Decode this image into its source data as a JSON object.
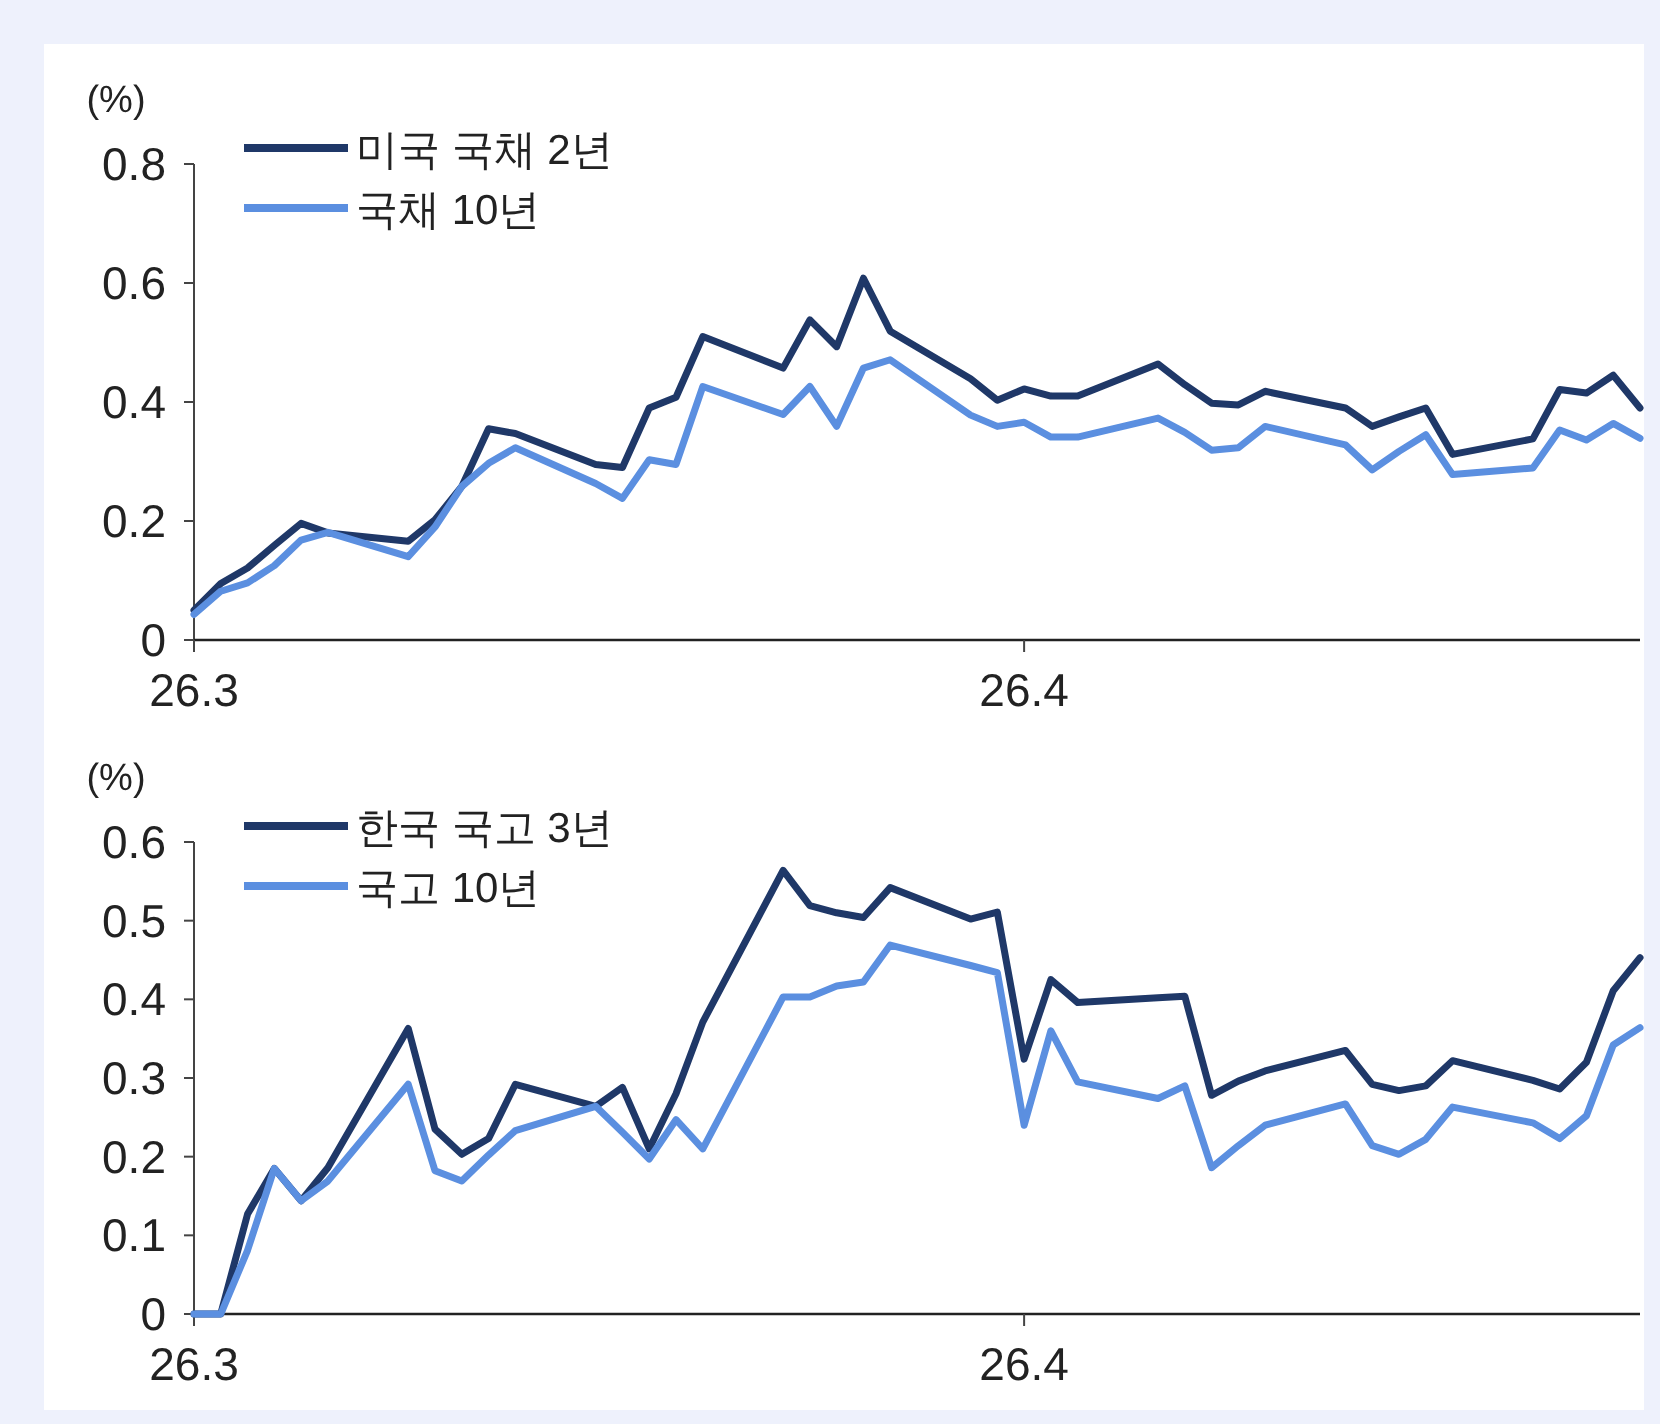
{
  "chart_data": [
    {
      "type": "line",
      "ylabel": "(%)",
      "legend": "top left",
      "ylim": [
        0,
        0.8
      ],
      "yticks": [
        0,
        0.2,
        0.4,
        0.6,
        0.8
      ],
      "xlim": [
        "--03-01",
        "--04-24"
      ],
      "xticks": [
        {
          "value": "--03-01",
          "label": "26.3"
        },
        {
          "value": "--04-01",
          "label": "26.4"
        }
      ],
      "x": [
        "--03-01",
        "--03-02",
        "--03-03",
        "--03-04",
        "--03-05",
        "--03-06",
        "--03-09",
        "--03-10",
        "--03-11",
        "--03-12",
        "--03-13",
        "--03-16",
        "--03-17",
        "--03-18",
        "--03-19",
        "--03-20",
        "--03-23",
        "--03-24",
        "--03-25",
        "--03-26",
        "--03-27",
        "--03-30",
        "--03-31",
        "--04-01",
        "--04-02",
        "--04-03",
        "--04-06",
        "--04-07",
        "--04-08",
        "--04-09",
        "--04-10",
        "--04-13",
        "--04-14",
        "--04-15",
        "--04-16",
        "--04-17",
        "--04-20",
        "--04-21",
        "--04-22",
        "--04-23",
        "--04-24"
      ],
      "series": [
        {
          "name": "미국 국채 2년",
          "color": "#1f3868",
          "values": [
            0.05,
            0.095,
            0.121,
            0.159,
            0.196,
            0.18,
            0.166,
            0.202,
            0.258,
            0.355,
            0.347,
            0.295,
            0.29,
            0.39,
            0.408,
            0.51,
            0.457,
            0.538,
            0.493,
            0.608,
            0.519,
            0.439,
            0.403,
            0.422,
            0.41,
            0.41,
            0.464,
            0.429,
            0.398,
            0.395,
            0.418,
            0.39,
            0.359,
            0.375,
            0.39,
            0.312,
            0.338,
            0.421,
            0.415,
            0.445,
            0.39
          ]
        },
        {
          "name": "국채 10년",
          "color": "#5b8fe0",
          "values": [
            0.043,
            0.082,
            0.096,
            0.125,
            0.168,
            0.181,
            0.14,
            0.19,
            0.258,
            0.297,
            0.323,
            0.263,
            0.238,
            0.303,
            0.295,
            0.426,
            0.379,
            0.426,
            0.359,
            0.457,
            0.471,
            0.378,
            0.359,
            0.366,
            0.341,
            0.341,
            0.373,
            0.349,
            0.319,
            0.323,
            0.359,
            0.328,
            0.286,
            0.317,
            0.345,
            0.278,
            0.289,
            0.353,
            0.336,
            0.364,
            0.339
          ]
        }
      ]
    },
    {
      "type": "line",
      "ylabel": "(%)",
      "legend": "top left",
      "ylim": [
        0,
        0.6
      ],
      "yticks": [
        0,
        0.1,
        0.2,
        0.3,
        0.4,
        0.5,
        0.6
      ],
      "xlim": [
        "--03-01",
        "--04-24"
      ],
      "xticks": [
        {
          "value": "--03-01",
          "label": "26.3"
        },
        {
          "value": "--04-01",
          "label": "26.4"
        }
      ],
      "x": [
        "--03-01",
        "--03-02",
        "--03-03",
        "--03-04",
        "--03-05",
        "--03-06",
        "--03-09",
        "--03-10",
        "--03-11",
        "--03-12",
        "--03-13",
        "--03-16",
        "--03-17",
        "--03-18",
        "--03-19",
        "--03-20",
        "--03-23",
        "--03-24",
        "--03-25",
        "--03-26",
        "--03-27",
        "--03-30",
        "--03-31",
        "--04-01",
        "--04-02",
        "--04-03",
        "--04-06",
        "--04-07",
        "--04-08",
        "--04-09",
        "--04-10",
        "--04-13",
        "--04-14",
        "--04-15",
        "--04-16",
        "--04-17",
        "--04-20",
        "--04-21",
        "--04-22",
        "--04-23",
        "--04-24"
      ],
      "series": [
        {
          "name": "한국 국고 3년",
          "color": "#1f3868",
          "values": [
            0,
            0,
            0.127,
            0.185,
            0.144,
            0.186,
            0.363,
            0.235,
            0.203,
            0.223,
            0.292,
            0.264,
            0.288,
            0.21,
            0.28,
            0.371,
            0.564,
            0.519,
            0.51,
            0.504,
            0.542,
            0.502,
            0.511,
            0.324,
            0.425,
            0.396,
            0.402,
            0.404,
            0.278,
            0.296,
            0.309,
            0.335,
            0.292,
            0.284,
            0.29,
            0.322,
            0.297,
            0.286,
            0.32,
            0.411,
            0.453
          ]
        },
        {
          "name": "국고 10년",
          "color": "#5b8fe0",
          "values": [
            0,
            0,
            0.081,
            0.185,
            0.144,
            0.169,
            0.292,
            0.182,
            0.169,
            0.202,
            0.233,
            0.264,
            0.231,
            0.197,
            0.247,
            0.21,
            0.403,
            0.403,
            0.417,
            0.422,
            0.469,
            0.443,
            0.434,
            0.24,
            0.36,
            0.295,
            0.274,
            0.29,
            0.186,
            0.214,
            0.24,
            0.267,
            0.214,
            0.203,
            0.222,
            0.263,
            0.243,
            0.223,
            0.252,
            0.342,
            0.364
          ]
        }
      ]
    }
  ]
}
